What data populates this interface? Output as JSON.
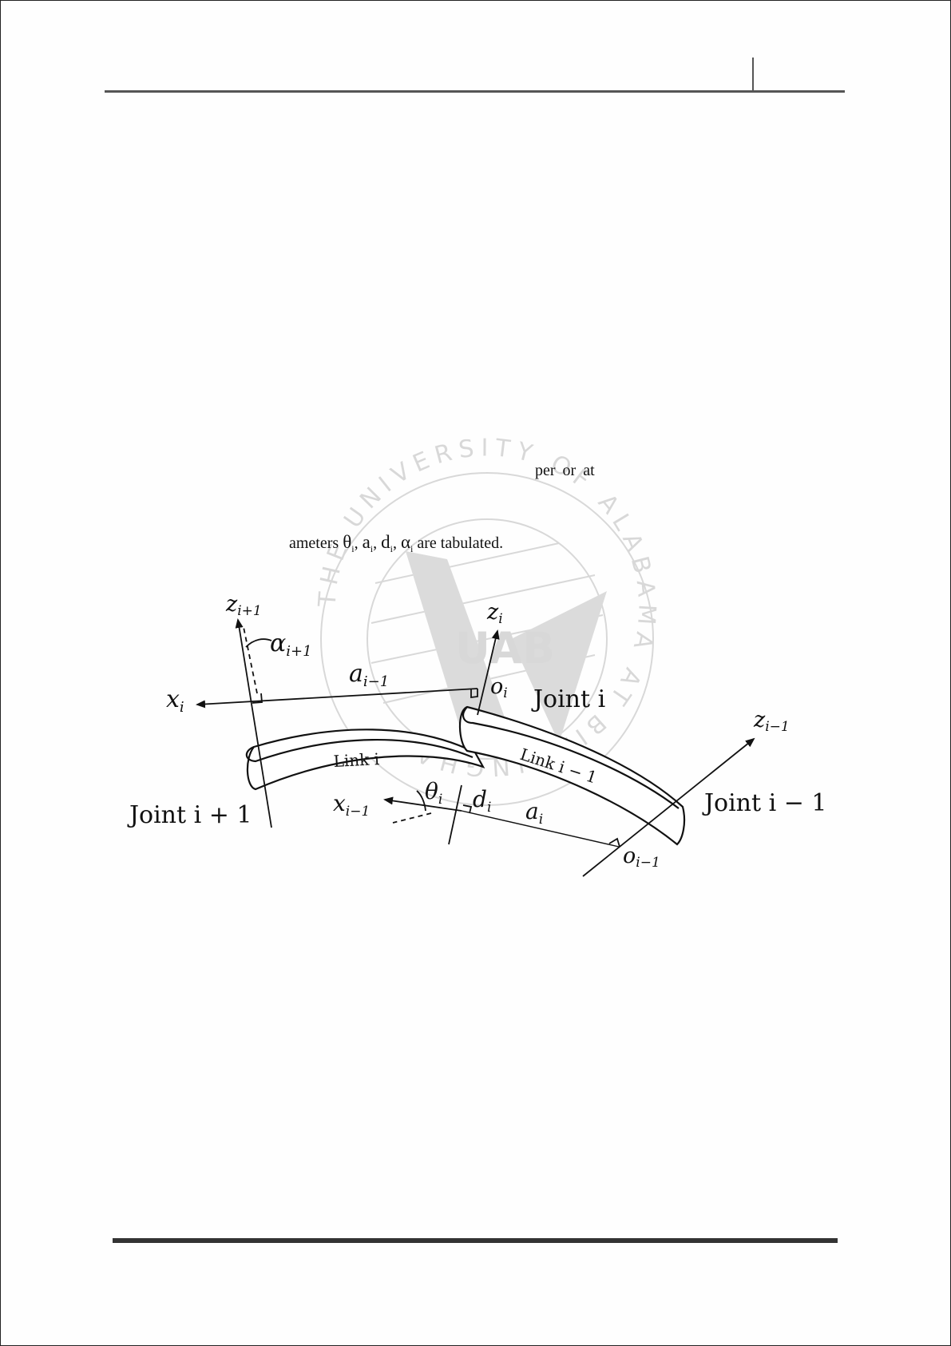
{
  "top_fragment": "per  or  at",
  "param_line": {
    "prefix": "ameters",
    "symbols": [
      "θ",
      "a",
      "d",
      "α"
    ],
    "subscript": "i",
    "suffix": "are tabulated."
  },
  "figure_labels": {
    "z_i_plus_1": {
      "base": "z",
      "sub": "i+1"
    },
    "alpha_i_plus_1": {
      "base": "α",
      "sub": "i+1"
    },
    "x_i": {
      "base": "x",
      "sub": "i"
    },
    "a_i_minus_1": {
      "base": "a",
      "sub": "i−1"
    },
    "z_i": {
      "base": "z",
      "sub": "i"
    },
    "o_i": {
      "base": "o",
      "sub": "i"
    },
    "joint_i": "Joint i",
    "z_i_minus_1": {
      "base": "z",
      "sub": "i−1"
    },
    "link_i": "Link i",
    "link_i_minus_1": "Link i − 1",
    "joint_i_plus_1": "Joint i + 1",
    "x_i_minus_1": {
      "base": "x",
      "sub": "i−1"
    },
    "theta_i": {
      "base": "θ",
      "sub": "i"
    },
    "d_i": {
      "base": "d",
      "sub": "i"
    },
    "a_i": {
      "base": "a",
      "sub": "i"
    },
    "joint_i_minus_1": "Joint i − 1",
    "o_i_minus_1": {
      "base": "o",
      "sub": "i−1"
    }
  },
  "watermark": {
    "text": "THE UNIVERSITY OF ALABAMA AT BIRMINGHAM",
    "logo": "UAB"
  }
}
